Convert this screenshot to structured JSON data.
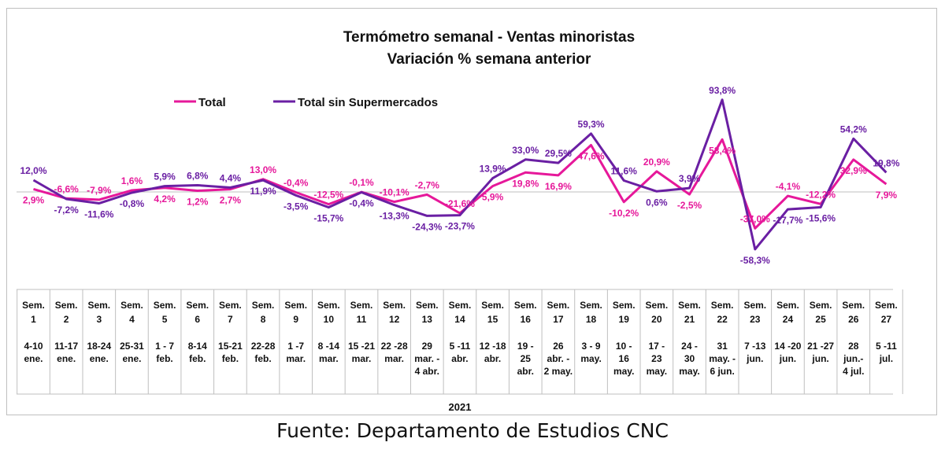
{
  "chart_data": {
    "type": "line",
    "title": "Termómetro semanal - Ventas minoristas",
    "subtitle": "Variación % semana anterior",
    "legend_position": "top-left",
    "grid": false,
    "ylim": [
      -70,
      100
    ],
    "year_label": "2021",
    "categories": [
      {
        "week": "Sem. 1",
        "range": "4-10 ene."
      },
      {
        "week": "Sem. 2",
        "range": "11-17 ene."
      },
      {
        "week": "Sem. 3",
        "range": "18-24 ene."
      },
      {
        "week": "Sem. 4",
        "range": "25-31 ene."
      },
      {
        "week": "Sem. 5",
        "range": "1 - 7 feb."
      },
      {
        "week": "Sem. 6",
        "range": "8-14 feb."
      },
      {
        "week": "Sem. 7",
        "range": "15-21 feb."
      },
      {
        "week": "Sem. 8",
        "range": "22-28 feb."
      },
      {
        "week": "Sem. 9",
        "range": "1 -7 mar."
      },
      {
        "week": "Sem. 10",
        "range": "8 -14 mar."
      },
      {
        "week": "Sem. 11",
        "range": "15 -21 mar."
      },
      {
        "week": "Sem. 12",
        "range": "22 -28 mar."
      },
      {
        "week": "Sem. 13",
        "range": "29 mar. - 4 abr."
      },
      {
        "week": "Sem. 14",
        "range": "5 -11 abr."
      },
      {
        "week": "Sem. 15",
        "range": "12 -18 abr."
      },
      {
        "week": "Sem. 16",
        "range": "19 - 25 abr."
      },
      {
        "week": "Sem. 17",
        "range": "26 abr. - 2 may."
      },
      {
        "week": "Sem. 18",
        "range": "3 - 9 may."
      },
      {
        "week": "Sem. 19",
        "range": "10 - 16 may."
      },
      {
        "week": "Sem. 20",
        "range": "17 - 23 may."
      },
      {
        "week": "Sem. 21",
        "range": "24 - 30 may."
      },
      {
        "week": "Sem. 22",
        "range": "31 may. - 6 jun."
      },
      {
        "week": "Sem. 23",
        "range": "7 -13 jun."
      },
      {
        "week": "Sem. 24",
        "range": "14 -20 jun."
      },
      {
        "week": "Sem. 25",
        "range": "21 -27 jun."
      },
      {
        "week": "Sem. 26",
        "range": "28 jun.- 4 jul."
      },
      {
        "week": "Sem. 27",
        "range": "5 -11 jul."
      }
    ],
    "series": [
      {
        "name": "Total",
        "color": "#e6189a",
        "values": [
          2.9,
          -6.6,
          -7.9,
          1.6,
          4.2,
          1.2,
          2.7,
          13.0,
          -0.4,
          -12.5,
          -0.1,
          -10.1,
          -2.7,
          -21.6,
          5.9,
          19.8,
          16.9,
          47.6,
          -10.2,
          20.9,
          -2.5,
          53.4,
          -37.0,
          -4.1,
          -12.2,
          32.9,
          7.9
        ],
        "labels": [
          "2,9%",
          "-6,6%",
          "-7,9%",
          "1,6%",
          "4,2%",
          "1,2%",
          "2,7%",
          "13,0%",
          "-0,4%",
          "-12,5%",
          "-0,1%",
          "-10,1%",
          "-2,7%",
          "-21,6%",
          "5,9%",
          "19,8%",
          "16,9%",
          "47,6%",
          "-10,2%",
          "20,9%",
          "-2,5%",
          "53,4%",
          "-37,0%",
          "-4,1%",
          "-12,2%",
          "32,9%",
          "7,9%"
        ]
      },
      {
        "name": "Total sin Supermercados",
        "color": "#6a1fa3",
        "values": [
          12.0,
          -7.2,
          -11.6,
          -0.8,
          5.9,
          6.8,
          4.4,
          11.9,
          -3.5,
          -15.7,
          -0.4,
          -13.3,
          -24.3,
          -23.7,
          13.9,
          33.0,
          29.5,
          59.3,
          11.6,
          0.6,
          3.9,
          93.8,
          -58.3,
          -17.7,
          -15.6,
          54.2,
          19.8
        ],
        "labels": [
          "12,0%",
          "-7,2%",
          "-11,6%",
          "-0,8%",
          "5,9%",
          "6,8%",
          "4,4%",
          "11,9%",
          "-3,5%",
          "-15,7%",
          "-0,4%",
          "-13,3%",
          "-24,3%",
          "-23,7%",
          "13,9%",
          "33,0%",
          "29,5%",
          "59,3%",
          "11,6%",
          "0,6%",
          "3,9%",
          "93,8%",
          "-58,3%",
          "-17,7%",
          "-15,6%",
          "54,2%",
          "19,8%"
        ]
      }
    ]
  },
  "source_note": "Fuente: Departamento de Estudios CNC"
}
